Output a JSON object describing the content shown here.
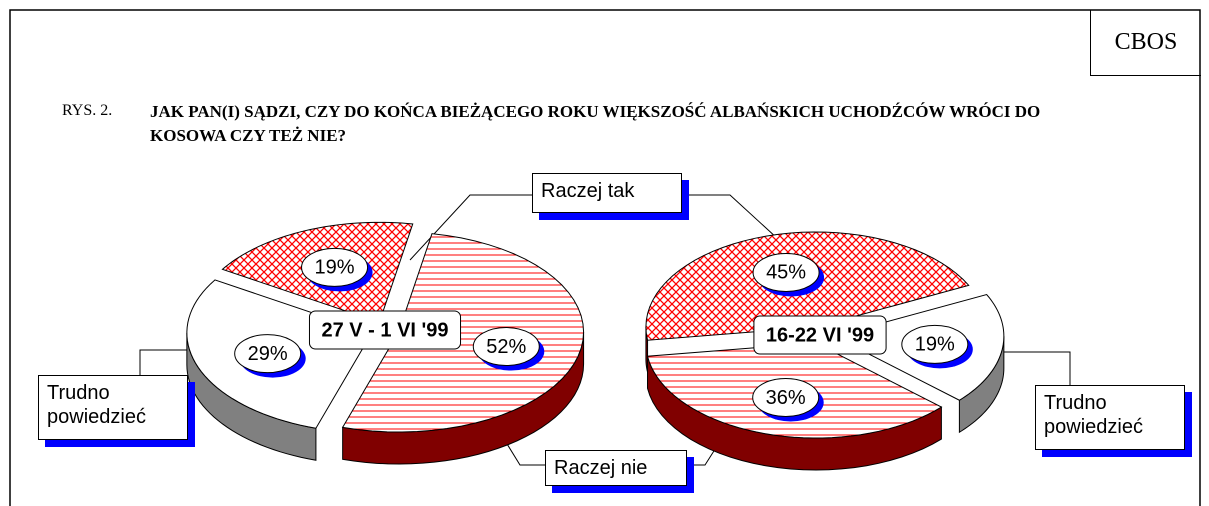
{
  "header": {
    "source": "CBOS",
    "label": "RYS. 2.",
    "title": "JAK PAN(I) SĄDZI, CZY DO KOŃCA BIEŻĄCEGO ROKU WIĘKSZOŚĆ ALBAŃSKICH UCHODŹCÓW WRÓCI DO KOSOWA CZY TEŻ NIE?"
  },
  "categories": [
    "Raczej tak",
    "Raczej nie",
    "Trudno powiedzieć"
  ],
  "patterns": [
    "crosshatch",
    "horizontal",
    "none"
  ],
  "chart_data": [
    {
      "type": "pie",
      "subtitle": "27 V - 1 VI '99",
      "values": [
        19,
        52,
        29
      ],
      "value_labels": [
        "19%",
        "52%",
        "29%"
      ]
    },
    {
      "type": "pie",
      "subtitle": "16-22 VI '99",
      "values": [
        45,
        36,
        19
      ],
      "value_labels": [
        "45%",
        "36%",
        "19%"
      ]
    }
  ]
}
